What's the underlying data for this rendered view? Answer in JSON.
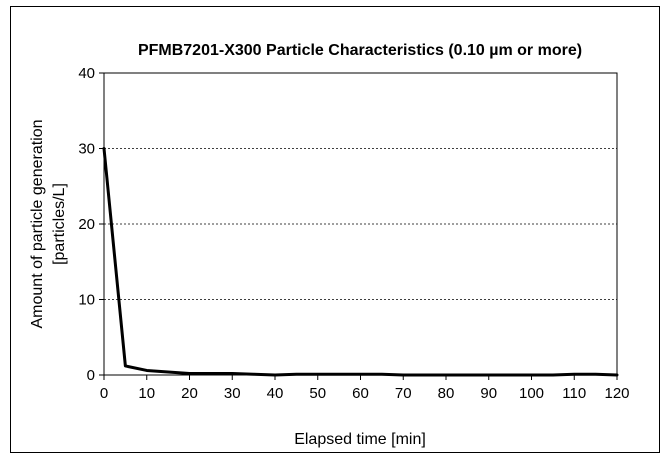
{
  "chart_data": {
    "type": "line",
    "title": "PFMB7201-X300 Particle Characteristics (0.10 µm or more)",
    "xlabel": "Elapsed time [min]",
    "ylabel_line1": "Amount of particle generation",
    "ylabel_line2": "[particles/L]",
    "xlim": [
      0,
      120
    ],
    "ylim": [
      0,
      40
    ],
    "x_ticks": [
      0,
      10,
      20,
      30,
      40,
      50,
      60,
      70,
      80,
      90,
      100,
      110,
      120
    ],
    "y_ticks": [
      0,
      10,
      20,
      30,
      40
    ],
    "x_tick_labels": [
      "0",
      "10",
      "20",
      "30",
      "40",
      "50",
      "60",
      "70",
      "80",
      "90",
      "100",
      "110",
      "120"
    ],
    "y_tick_labels": [
      "0",
      "10",
      "20",
      "30",
      "40"
    ],
    "grid": "horizontal dotted",
    "series": [
      {
        "x": [
          0,
          5,
          10,
          15,
          20,
          25,
          30,
          35,
          40,
          45,
          50,
          55,
          60,
          65,
          70,
          75,
          80,
          85,
          90,
          95,
          100,
          105,
          110,
          115,
          120
        ],
        "values": [
          30,
          1.2,
          0.6,
          0.4,
          0.2,
          0.2,
          0.2,
          0.1,
          0,
          0.1,
          0.1,
          0.1,
          0.1,
          0.1,
          0,
          0,
          0,
          0,
          0,
          0,
          0,
          0,
          0.1,
          0.1,
          0
        ],
        "color": "#000000"
      }
    ]
  }
}
